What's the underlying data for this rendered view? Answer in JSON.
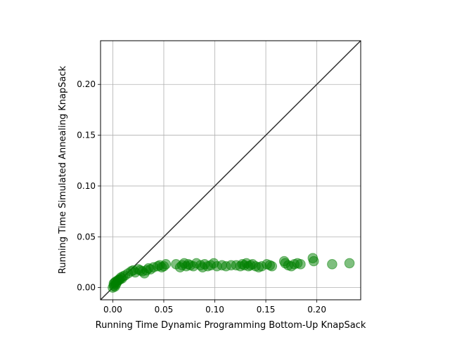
{
  "chart_data": {
    "type": "scatter",
    "title": "",
    "xlabel": "Running Time Dynamic Programming Bottom-Up KnapSack",
    "ylabel": "Running Time Simulated Annealing KnapSack",
    "xlim": [
      -0.012,
      0.243
    ],
    "ylim": [
      -0.012,
      0.243
    ],
    "xticks": [
      "0.00",
      "0.05",
      "0.10",
      "0.15",
      "0.20"
    ],
    "yticks": [
      "0.00",
      "0.05",
      "0.10",
      "0.15",
      "0.20"
    ],
    "grid": true,
    "reference_line": "y = x",
    "colors": {
      "points": "#008000",
      "reference_line": "#333333",
      "grid": "#b0b0b0",
      "axes": "#000000"
    },
    "series": [
      {
        "x": [
          0.0,
          0.001,
          0.001,
          0.002,
          0.002,
          0.003,
          0.003,
          0.004,
          0.005,
          0.006,
          0.007,
          0.008,
          0.009,
          0.01,
          0.012,
          0.015,
          0.018,
          0.02,
          0.022,
          0.025,
          0.027,
          0.029,
          0.031,
          0.033,
          0.035,
          0.037,
          0.04,
          0.044,
          0.046,
          0.048,
          0.05,
          0.052,
          0.062,
          0.066,
          0.068,
          0.07,
          0.072,
          0.074,
          0.076,
          0.079,
          0.082,
          0.086,
          0.088,
          0.09,
          0.093,
          0.096,
          0.099,
          0.102,
          0.107,
          0.111,
          0.116,
          0.121,
          0.125,
          0.127,
          0.129,
          0.131,
          0.133,
          0.135,
          0.137,
          0.14,
          0.143,
          0.146,
          0.151,
          0.154,
          0.156,
          0.168,
          0.169,
          0.172,
          0.175,
          0.178,
          0.181,
          0.184,
          0.196,
          0.197,
          0.215,
          0.232
        ],
        "y": [
          0.0,
          0.002,
          0.004,
          0.001,
          0.005,
          0.003,
          0.006,
          0.005,
          0.007,
          0.008,
          0.008,
          0.01,
          0.009,
          0.011,
          0.012,
          0.014,
          0.016,
          0.017,
          0.015,
          0.018,
          0.017,
          0.016,
          0.014,
          0.017,
          0.019,
          0.018,
          0.02,
          0.021,
          0.022,
          0.02,
          0.021,
          0.023,
          0.023,
          0.02,
          0.022,
          0.024,
          0.021,
          0.023,
          0.022,
          0.021,
          0.024,
          0.022,
          0.02,
          0.023,
          0.021,
          0.022,
          0.024,
          0.021,
          0.022,
          0.021,
          0.022,
          0.022,
          0.021,
          0.023,
          0.022,
          0.024,
          0.021,
          0.022,
          0.023,
          0.021,
          0.02,
          0.021,
          0.023,
          0.022,
          0.021,
          0.026,
          0.024,
          0.022,
          0.021,
          0.023,
          0.024,
          0.023,
          0.029,
          0.026,
          0.023,
          0.024
        ]
      }
    ]
  }
}
